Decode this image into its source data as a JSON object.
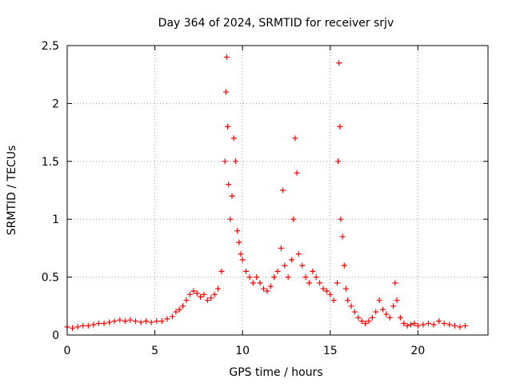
{
  "chart_data": {
    "type": "scatter",
    "title": "Day 364 of 2024, SRMTID for receiver srjv",
    "xlabel": "GPS time / hours",
    "ylabel": "SRMTID / TECUs",
    "xlim": [
      0,
      24
    ],
    "ylim": [
      0,
      2.5
    ],
    "xticks": [
      0,
      5,
      10,
      15,
      20
    ],
    "yticks": [
      0,
      0.5,
      1,
      1.5,
      2,
      2.5
    ],
    "xtick_labels": [
      "0",
      "5",
      "10",
      "15",
      "20"
    ],
    "ytick_labels": [
      "0",
      "0.5",
      "1",
      "1.5",
      "2",
      "2.5"
    ],
    "grid": true,
    "marker": "+",
    "series": [
      {
        "name": "SRMTID srjv",
        "color": "#ff0000",
        "x": [
          0.0,
          0.3,
          0.6,
          0.9,
          1.2,
          1.5,
          1.8,
          2.1,
          2.4,
          2.7,
          3.0,
          3.3,
          3.6,
          3.9,
          4.2,
          4.5,
          4.8,
          5.1,
          5.4,
          5.7,
          6.0,
          6.2,
          6.4,
          6.6,
          6.8,
          7.0,
          7.2,
          7.4,
          7.6,
          7.8,
          8.0,
          8.2,
          8.4,
          8.6,
          8.8,
          9.0,
          9.05,
          9.1,
          9.15,
          9.2,
          9.3,
          9.4,
          9.5,
          9.6,
          9.7,
          9.8,
          9.9,
          10.0,
          10.2,
          10.4,
          10.6,
          10.8,
          11.0,
          11.2,
          11.4,
          11.6,
          11.8,
          12.0,
          12.2,
          12.3,
          12.4,
          12.6,
          12.8,
          12.9,
          13.0,
          13.1,
          13.2,
          13.4,
          13.6,
          13.8,
          14.0,
          14.2,
          14.4,
          14.6,
          14.8,
          15.0,
          15.2,
          15.4,
          15.45,
          15.5,
          15.55,
          15.6,
          15.7,
          15.8,
          15.9,
          16.0,
          16.2,
          16.4,
          16.6,
          16.8,
          17.0,
          17.2,
          17.4,
          17.6,
          17.8,
          18.0,
          18.2,
          18.4,
          18.6,
          18.7,
          18.8,
          19.0,
          19.2,
          19.4,
          19.6,
          19.8,
          20.0,
          20.3,
          20.6,
          20.9,
          21.2,
          21.5,
          21.8,
          22.1,
          22.4,
          22.7
        ],
        "y": [
          0.07,
          0.06,
          0.07,
          0.08,
          0.08,
          0.09,
          0.1,
          0.1,
          0.11,
          0.12,
          0.13,
          0.12,
          0.13,
          0.12,
          0.11,
          0.12,
          0.11,
          0.12,
          0.12,
          0.14,
          0.16,
          0.2,
          0.22,
          0.25,
          0.3,
          0.35,
          0.38,
          0.36,
          0.33,
          0.35,
          0.3,
          0.32,
          0.35,
          0.4,
          0.55,
          1.5,
          2.1,
          2.4,
          1.8,
          1.3,
          1.0,
          1.2,
          1.7,
          1.5,
          0.9,
          0.8,
          0.7,
          0.65,
          0.55,
          0.5,
          0.45,
          0.5,
          0.45,
          0.4,
          0.38,
          0.42,
          0.5,
          0.55,
          0.75,
          1.25,
          0.6,
          0.5,
          0.65,
          1.0,
          1.7,
          1.4,
          0.7,
          0.6,
          0.5,
          0.45,
          0.55,
          0.5,
          0.45,
          0.4,
          0.38,
          0.35,
          0.3,
          0.45,
          1.5,
          2.35,
          1.8,
          1.0,
          0.85,
          0.6,
          0.4,
          0.3,
          0.25,
          0.2,
          0.15,
          0.12,
          0.1,
          0.12,
          0.15,
          0.2,
          0.3,
          0.22,
          0.18,
          0.15,
          0.25,
          0.45,
          0.3,
          0.15,
          0.1,
          0.08,
          0.09,
          0.1,
          0.08,
          0.09,
          0.1,
          0.09,
          0.12,
          0.1,
          0.09,
          0.08,
          0.07,
          0.08
        ]
      }
    ]
  }
}
